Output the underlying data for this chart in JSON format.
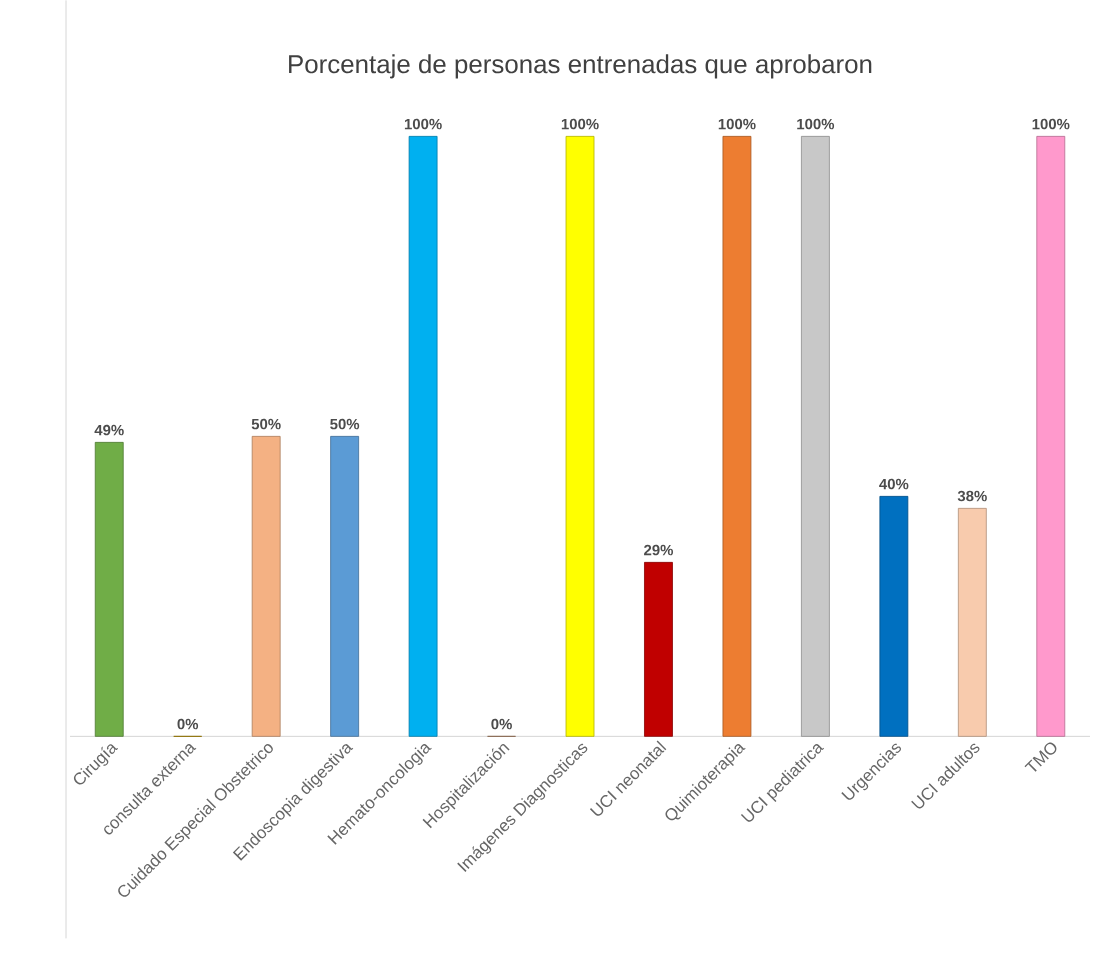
{
  "chart_data": {
    "type": "bar",
    "title": "Porcentaje de personas entrenadas que aprobaron",
    "categories": [
      "Cirugía",
      "consulta externa",
      "Cuidado Especial Obstetrico",
      "Endoscopia digestiva",
      "Hemato-oncologia",
      "Hospitalización",
      "Imágenes Diagnosticas",
      "UCI neonatal",
      "Quimioterapia",
      "UCI pediatrica",
      "Urgencias",
      "UCI adultos",
      "TMO"
    ],
    "values": [
      49,
      0,
      50,
      50,
      100,
      0,
      100,
      29,
      100,
      100,
      40,
      38,
      100
    ],
    "value_labels": [
      "49%",
      "0%",
      "50%",
      "50%",
      "100%",
      "0%",
      "100%",
      "29%",
      "100%",
      "100%",
      "40%",
      "38%",
      "100%"
    ],
    "colors": [
      "#70ad47",
      "#c9a000",
      "#f4b183",
      "#5b9bd5",
      "#00b0f0",
      "#c0906f",
      "#ffff00",
      "#c00000",
      "#ed7d31",
      "#c8c8c8",
      "#0070c0",
      "#f8cbad",
      "#ff99cc"
    ],
    "ylim": [
      0,
      100
    ],
    "tick_labels": "x"
  }
}
